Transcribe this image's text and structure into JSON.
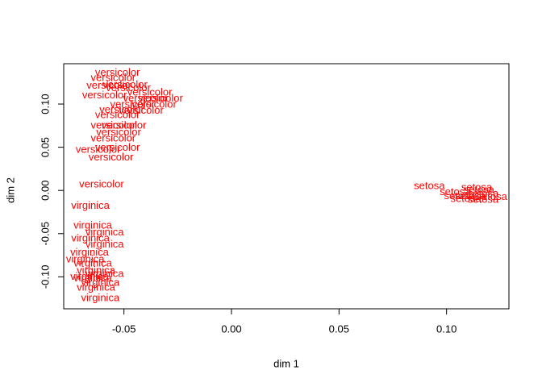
{
  "chart_data": {
    "type": "scatter",
    "xlabel": "dim 1",
    "ylabel": "dim 2",
    "color": "#ff0000",
    "xlim": [
      -0.078,
      0.129
    ],
    "ylim": [
      -0.137,
      0.1467
    ],
    "xticks": [
      -0.05,
      {
        "value": 0,
        "label": "0.00"
      },
      0.05,
      {
        "value": 0.1,
        "label": "0.10"
      }
    ],
    "yticks": [
      {
        "value": -0.1,
        "label": "-0.10"
      },
      -0.05,
      {
        "value": 0,
        "label": "0.00"
      },
      0.05,
      {
        "value": 0.1,
        "label": "0.10"
      }
    ],
    "x": [
      -0.0604,
      -0.056,
      -0.055,
      -0.062,
      -0.053,
      -0.0525,
      -0.055,
      -0.05,
      -0.053,
      -0.055,
      -0.0495,
      -0.059,
      -0.04,
      -0.036,
      -0.042,
      -0.053,
      -0.048,
      -0.046,
      -0.033,
      -0.051,
      -0.038,
      -0.057,
      -0.0656,
      -0.0645,
      -0.059,
      -0.0656,
      -0.059,
      -0.066,
      -0.0645,
      -0.063,
      -0.066,
      -0.061,
      -0.063,
      -0.061,
      -0.068,
      -0.059,
      -0.0645,
      0.092,
      0.114,
      0.104,
      0.111,
      0.117,
      0.109,
      0.121,
      0.115,
      0.106,
      0.117
    ],
    "y": [
      0.0065,
      0.038,
      0.06,
      0.047,
      0.049,
      0.067,
      0.075,
      0.075,
      0.136,
      0.13,
      0.122,
      0.11,
      0.106,
      0.099,
      0.092,
      0.087,
      0.118,
      0.099,
      0.106,
      0.093,
      0.113,
      0.121,
      -0.018,
      -0.041,
      -0.049,
      -0.056,
      -0.063,
      -0.072,
      -0.085,
      -0.093,
      -0.1,
      -0.107,
      -0.113,
      -0.125,
      -0.08,
      -0.097,
      -0.102,
      0.005,
      0.003,
      -0.002,
      -0.007,
      -0.004,
      -0.01,
      -0.008,
      0.0,
      -0.007,
      -0.011
    ],
    "labels": [
      "versicolor",
      "versicolor",
      "versicolor",
      "versicolor",
      "versicolor",
      "versicolor",
      "versicolor",
      "versicolor",
      "versicolor",
      "versicolor",
      "versicolor",
      "versicolor",
      "versicolor",
      "versicolor",
      "versicolor",
      "versicolor",
      "versicolor",
      "versicolor",
      "versicolor",
      "versicolor",
      "versicolor",
      "versicolor",
      "virginica",
      "virginica",
      "virginica",
      "virginica",
      "virginica",
      "virginica",
      "virginica",
      "virginica",
      "virginica",
      "virginica",
      "virginica",
      "virginica",
      "virginica",
      "virginica",
      "virginica",
      "setosa",
      "setosa",
      "setosa",
      "setosa",
      "setosa",
      "setosa",
      "setosa",
      "setosa",
      "setosa",
      "setosa"
    ]
  }
}
